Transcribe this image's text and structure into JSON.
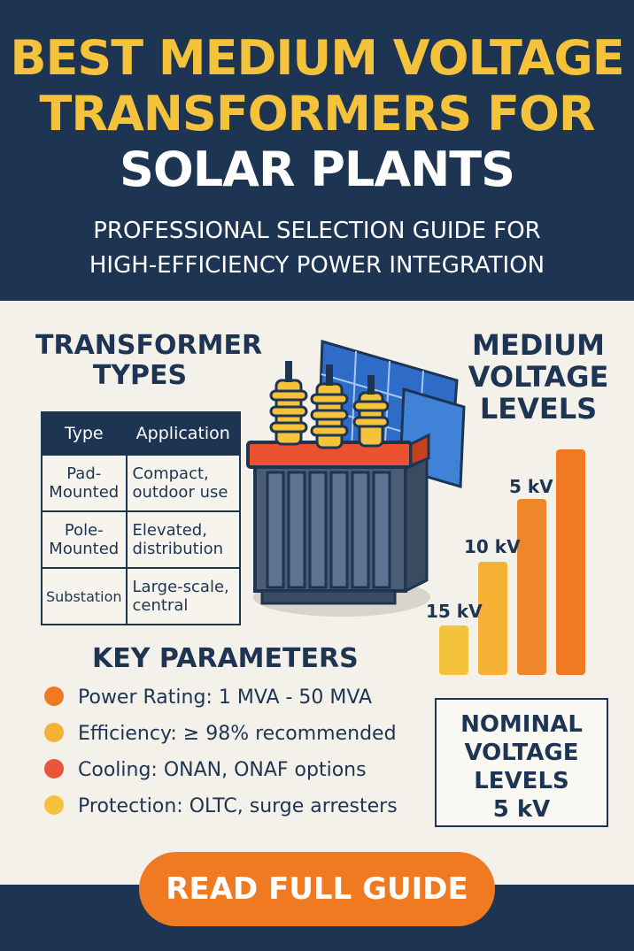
{
  "header": {
    "title_line1": "BEST MEDIUM VOLTAGE",
    "title_line2": "TRANSFORMERS FOR",
    "title_line3": "SOLAR PLANTS",
    "subtitle_line1": "PROFESSIONAL SELECTION GUIDE FOR",
    "subtitle_line2": "HIGH-EFFICIENCY POWER INTEGRATION"
  },
  "types": {
    "heading_line1": "TRANSFORMER",
    "heading_line2": "TYPES",
    "columns": [
      "Type",
      "Application"
    ],
    "rows": [
      {
        "type_l1": "Pad-",
        "type_l2": "Mounted",
        "app_l1": "Compact,",
        "app_l2": "outdoor use"
      },
      {
        "type_l1": "Pole-",
        "type_l2": "Mounted",
        "app_l1": "Elevated,",
        "app_l2": "distribution"
      },
      {
        "type_l1": "Substation",
        "type_l2": "",
        "app_l1": "Large-scale,",
        "app_l2": "central"
      }
    ]
  },
  "voltage": {
    "heading_line1": "MEDIUM",
    "heading_line2": "VOLTAGE",
    "heading_line3": "LEVELS",
    "labels": [
      "15 kV",
      "10 kV",
      "5 kV"
    ],
    "bar_levels": [
      0.22,
      0.5,
      0.78,
      1.0
    ],
    "bar_colors": [
      "#f5c33b",
      "#f5b134",
      "#f0862a",
      "#f07a22"
    ]
  },
  "params": {
    "heading": "KEY PARAMETERS",
    "items": [
      {
        "text": "Power Rating: 1 MVA - 50 MVA",
        "color": "#f07a22"
      },
      {
        "text": "Efficiency: ≥ 98% recommended",
        "color": "#f5b134"
      },
      {
        "text": "Cooling: ONAN, ONAF options",
        "color": "#e8553b"
      },
      {
        "text": "Protection: OLTC, surge arresters",
        "color": "#f5c33b"
      }
    ]
  },
  "nominal": {
    "line1": "NOMINAL",
    "line2": "VOLTAGE",
    "line3": "LEVELS",
    "line4": "5 kV"
  },
  "cta": {
    "label": "READ FULL GUIDE"
  },
  "colors": {
    "navy": "#1d3553",
    "gold": "#f5c33b",
    "orange": "#f07a22",
    "cream": "#f4f1ea"
  },
  "illustration": {
    "icon": "transformer-with-solar-panel-icon"
  }
}
